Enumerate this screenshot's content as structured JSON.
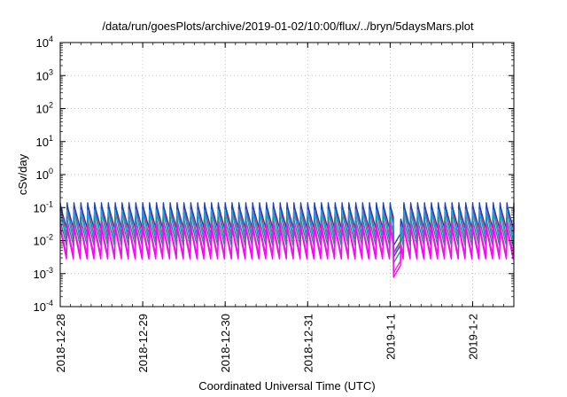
{
  "chart_data": {
    "type": "line",
    "title": "/data/run/goesPlots/archive/2019-01-02/10:00/flux/../bryn/5daysMars.plot",
    "xlabel": "Coordinated Universal Time (UTC)",
    "ylabel": "cSv/day",
    "yscale": "log",
    "ylim": [
      0.0001,
      10000
    ],
    "ytick_exponents": [
      -4,
      -3,
      -2,
      -1,
      0,
      1,
      2,
      3,
      4
    ],
    "ytick_base": "10",
    "xlim": [
      "2018-12-28T00:00",
      "2019-01-02T12:00"
    ],
    "xtick_labels": [
      "2018-12-28",
      "2018-12-29",
      "2018-12-30",
      "2018-12-31",
      "2019-1-1",
      "2019-1-2"
    ],
    "grid": true,
    "pattern": {
      "period_hours": 2,
      "dropout": {
        "start": "2019-01-01T01:00",
        "end": "2019-01-01T03:00"
      }
    },
    "series": [
      {
        "color": "#e41a1c",
        "peak": 0.11,
        "trough": 0.012
      },
      {
        "color": "#7b2d9b",
        "peak": 0.09,
        "trough": 0.009
      },
      {
        "color": "#1e3fbf",
        "peak": 0.14,
        "trough": 0.02
      },
      {
        "color": "#1aa3ee",
        "peak": 0.085,
        "trough": 0.011
      },
      {
        "color": "#109a7a",
        "peak": 0.05,
        "trough": 0.006
      },
      {
        "color": "#d63cc8",
        "peak": 0.035,
        "trough": 0.003
      },
      {
        "color": "#ff00ff",
        "peak": 0.028,
        "trough": 0.0022
      }
    ]
  }
}
